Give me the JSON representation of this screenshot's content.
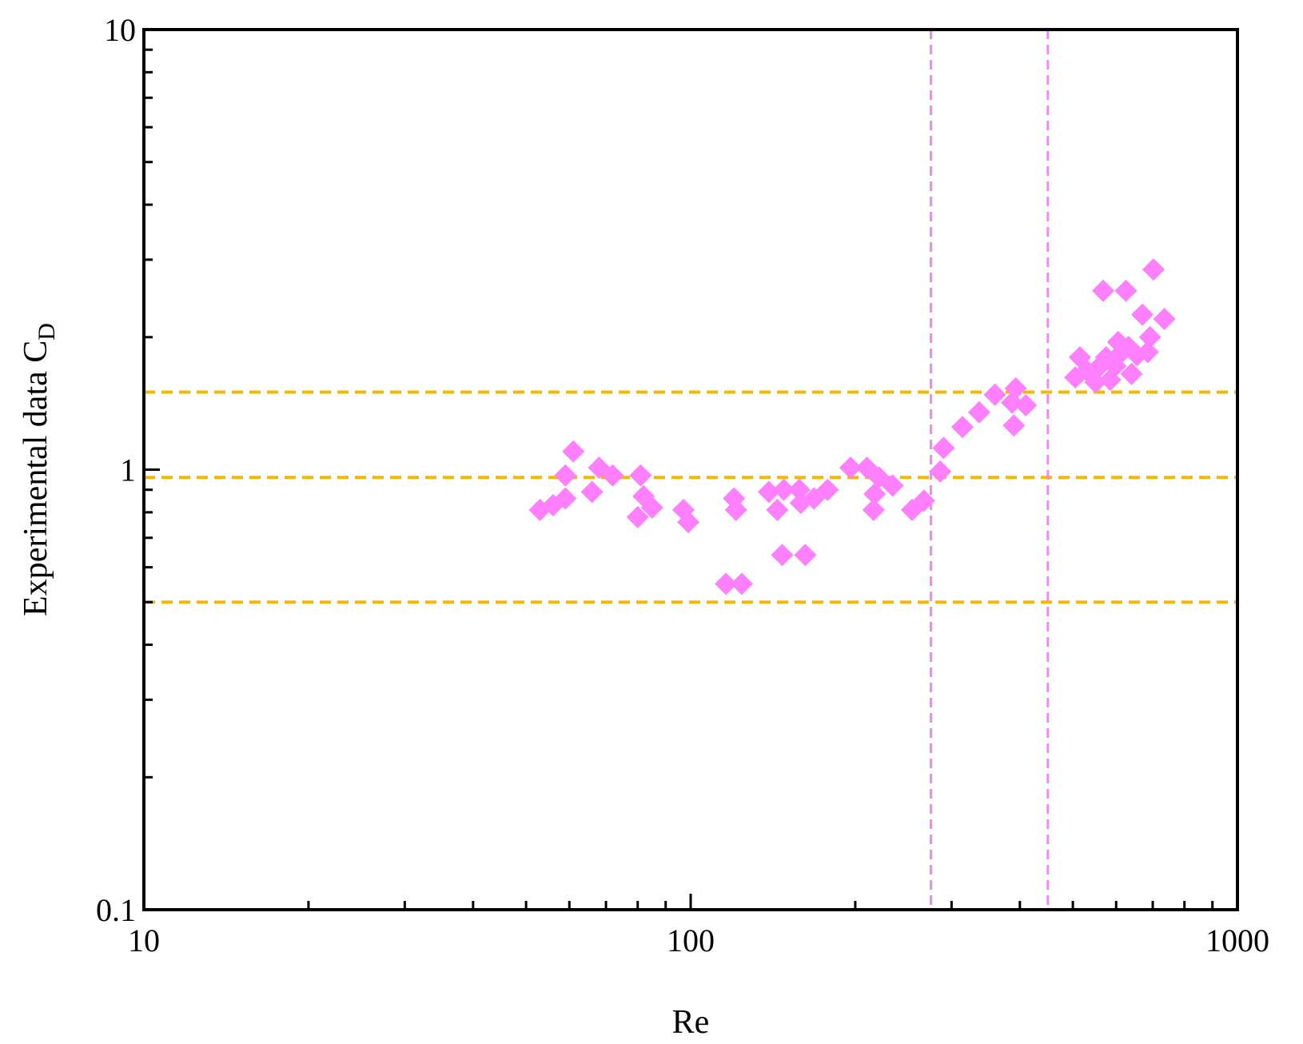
{
  "chart_data": {
    "type": "scatter",
    "xlabel": "Re",
    "ylabel": "Experimental data C",
    "ylabel_subscript": "D",
    "x_scale": "log",
    "y_scale": "log",
    "xlim": [
      10,
      1000
    ],
    "ylim": [
      0.1,
      10
    ],
    "x_ticks": [
      {
        "value": 10,
        "label": "10"
      },
      {
        "value": 100,
        "label": "100"
      },
      {
        "value": 1000,
        "label": "1000"
      }
    ],
    "y_ticks": [
      {
        "value": 0.1,
        "label": "0.1"
      },
      {
        "value": 1,
        "label": "1"
      },
      {
        "value": 10,
        "label": "10"
      }
    ],
    "grid": false,
    "marker": "diamond",
    "marker_color": "#ff80ff",
    "hline_color": "#f5b800",
    "vline_color": "#ff80ff",
    "hlines": [
      1.5,
      0.96,
      0.5
    ],
    "vlines": [
      275,
      450
    ],
    "points": [
      [
        53,
        0.81
      ],
      [
        56,
        0.83
      ],
      [
        59,
        0.86
      ],
      [
        59,
        0.97
      ],
      [
        61,
        1.1
      ],
      [
        66,
        0.89
      ],
      [
        68,
        1.01
      ],
      [
        72,
        0.97
      ],
      [
        80,
        0.78
      ],
      [
        81,
        0.97
      ],
      [
        82,
        0.87
      ],
      [
        85,
        0.82
      ],
      [
        97,
        0.81
      ],
      [
        99,
        0.76
      ],
      [
        116,
        0.55
      ],
      [
        120,
        0.86
      ],
      [
        121,
        0.81
      ],
      [
        124,
        0.55
      ],
      [
        139,
        0.89
      ],
      [
        144,
        0.81
      ],
      [
        147,
        0.64
      ],
      [
        148,
        0.9
      ],
      [
        158,
        0.9
      ],
      [
        159,
        0.84
      ],
      [
        162,
        0.64
      ],
      [
        168,
        0.86
      ],
      [
        178,
        0.9
      ],
      [
        196,
        1.01
      ],
      [
        210,
        1.01
      ],
      [
        216,
        0.81
      ],
      [
        217,
        0.88
      ],
      [
        221,
        0.96
      ],
      [
        234,
        0.92
      ],
      [
        254,
        0.81
      ],
      [
        267,
        0.85
      ],
      [
        286,
        0.99
      ],
      [
        290,
        1.12
      ],
      [
        314,
        1.25
      ],
      [
        337,
        1.35
      ],
      [
        360,
        1.48
      ],
      [
        387,
        1.42
      ],
      [
        390,
        1.26
      ],
      [
        393,
        1.53
      ],
      [
        410,
        1.4
      ],
      [
        505,
        1.62
      ],
      [
        515,
        1.8
      ],
      [
        530,
        1.68
      ],
      [
        550,
        1.58
      ],
      [
        560,
        1.72
      ],
      [
        568,
        2.55
      ],
      [
        575,
        1.8
      ],
      [
        585,
        1.6
      ],
      [
        598,
        1.72
      ],
      [
        605,
        1.95
      ],
      [
        615,
        1.85
      ],
      [
        625,
        2.55
      ],
      [
        632,
        1.9
      ],
      [
        640,
        1.65
      ],
      [
        655,
        1.82
      ],
      [
        670,
        2.25
      ],
      [
        685,
        1.85
      ],
      [
        692,
        2.0
      ],
      [
        702,
        2.85
      ],
      [
        735,
        2.2
      ]
    ]
  }
}
